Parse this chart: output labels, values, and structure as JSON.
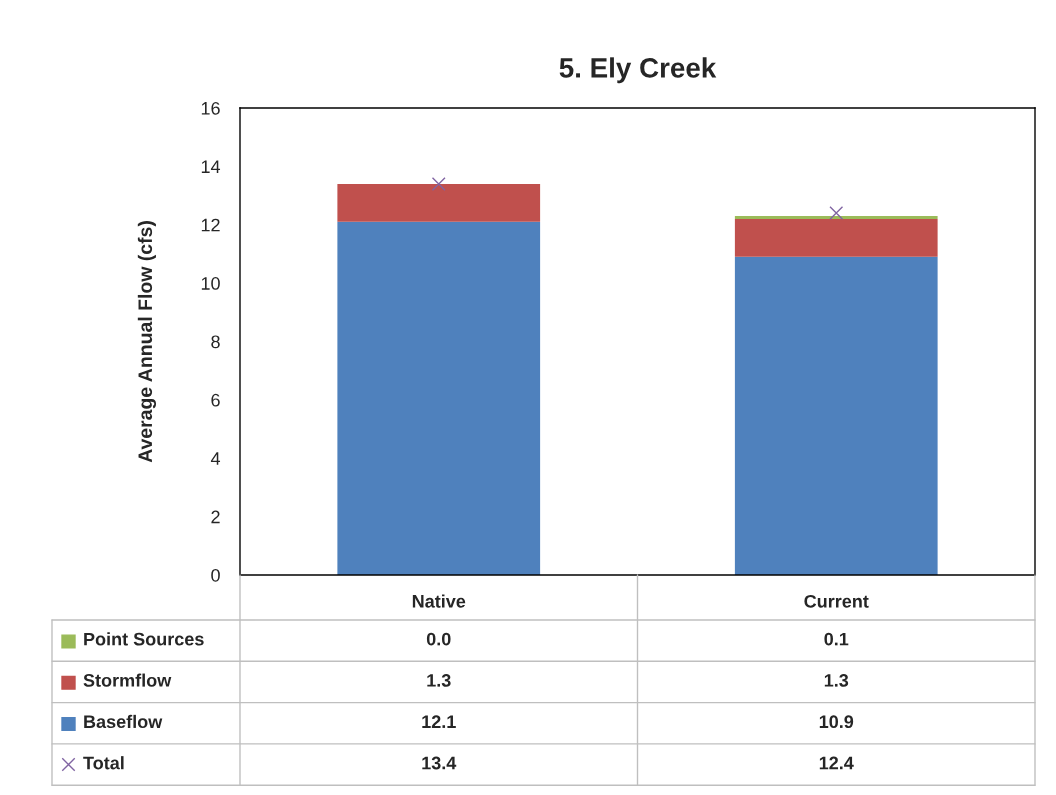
{
  "chart_data": {
    "type": "bar",
    "title": "5. Ely Creek",
    "ylabel": "Average Annual Flow (cfs)",
    "categories": [
      "Native",
      "Current"
    ],
    "stacked": true,
    "grid": false,
    "legend": "bottom",
    "ylim": [
      0,
      16
    ],
    "yticks": [
      0,
      2,
      4,
      6,
      8,
      10,
      12,
      14,
      16
    ],
    "series": [
      {
        "name": "Baseflow",
        "color": "#4f81bd",
        "values": [
          12.1,
          10.9
        ],
        "value_labels": [
          "12.1",
          "10.9"
        ]
      },
      {
        "name": "Stormflow",
        "color": "#c0504d",
        "values": [
          1.3,
          1.3
        ],
        "value_labels": [
          "1.3",
          "1.3"
        ]
      },
      {
        "name": "Point Sources",
        "color": "#9bbb59",
        "values": [
          0.0,
          0.1
        ],
        "value_labels": [
          "0.0",
          "0.1"
        ]
      },
      {
        "name": "Total",
        "type": "scatter",
        "marker": "cross",
        "color": "#8064a2",
        "values": [
          13.4,
          12.4
        ],
        "value_labels": [
          "13.4",
          "12.4"
        ]
      }
    ]
  }
}
